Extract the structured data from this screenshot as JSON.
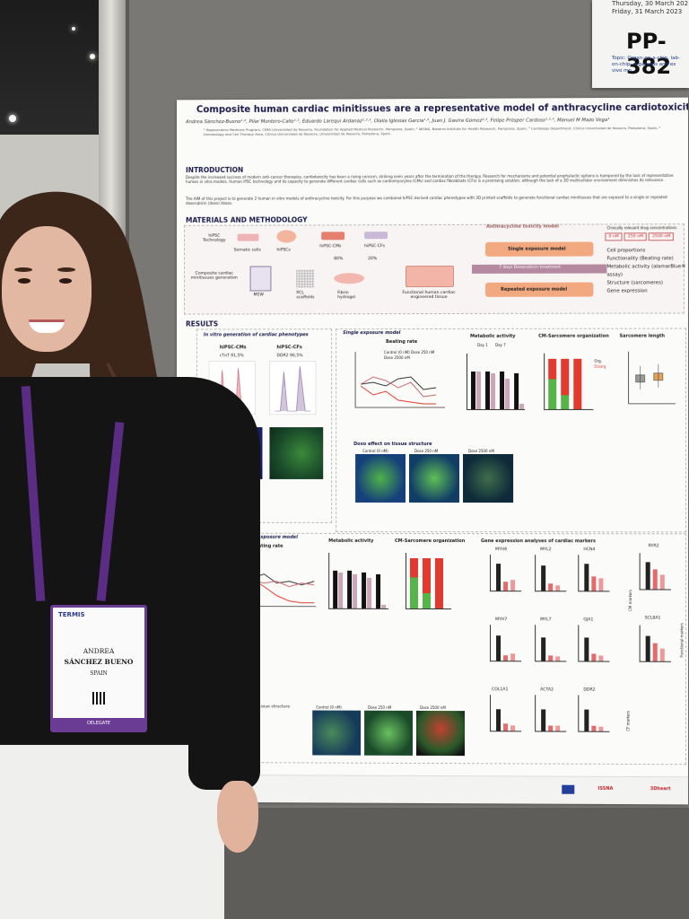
{
  "card": {
    "date_line1": "Thursday, 30 March 202",
    "date_line2": "Friday, 31 March 2023",
    "poster_id": "PP-382",
    "topic": "Topic: Organ-on-a-chip, lab-on-chip, organoids and ex vivo mo..."
  },
  "poster": {
    "title": "Composite human cardiac minitissues are a representative model of anthracycline cardiotoxicity",
    "authors": "Andrea Sánchez-Bueno¹·², Pilar Montero-Calle¹·², Eduardo Larequi Ardanáz¹·²·³, Olalla Iglesias García¹·², Juan J. Gavira Gómez²·³, Felipe Prósper Cardoso¹·²·³, Manuel M Mazo Vega¹",
    "affiliations": "¹ Regenerative Medicine Program, CIMA Universidad de Navarra, Foundation for Applied Medical Research, Pamplona, Spain; ² IdiSNA, Navarra Institute for Health Research, Pamplona, Spain; ³ Cardiology Department, Clínica Universidad de Navarra, Pamplona, Spain; ⁴ Hematology and Cell Therapy Area, Clínica Universidad de Navarra, Universidad de Navarra, Pamplona, Spain.",
    "intro_heading": "INTRODUCTION",
    "intro_text": "Despite the increased success of modern anti-cancer therapies, cardiotoxicity has been a rising concern, striking even years after the termination of the therapy. Research for mechanisms and potential prophylactic options is hampered by the lack of representative human in vitro models. Human iPSC technology and its capacity to generate different cardiac cells such as cardiomyocytes (CMs) and cardiac fibroblasts (CFs) is a promising solution, although the lack of a 3D multicellular environment diminishes its relevance.",
    "intro_aim": "The AIM of this project is to generate 2 human in vitro models of anthracycline toxicity. For this purpose we combined hiPSC-derived cardiac phenotypes with 3D printed scaffolds to generate functional cardiac minitissues that are exposed to a single or repeated doxorubicin (doxo) doses.",
    "methods_heading": "MATERIALS AND METHODOLOGY",
    "methods": {
      "hipsc_tech": "hiPSC Technology",
      "somatic": "Somatic cells",
      "hipscs": "hiPSCs",
      "hipsc_cms": "hiPSC-CMs",
      "hipsc_cfs": "hiPSC-CFs",
      "pct80": "80%",
      "pct20": "20%",
      "composite": "Composite cardiac minitissues generation",
      "mew": "MEW",
      "pcl": "PCL scaffolds",
      "fibrin": "Fibrin hydrogel",
      "functional": "Functional human cardiac engineered tissue",
      "toxicity_title": "Anthracycline toxicity model",
      "single_model": "Single exposure model",
      "doxo_treatment": "7 days Doxorubicin treatment",
      "repeated_model": "Repeated exposure model",
      "conc_title": "Clinically relevant drug concentrations",
      "conc": [
        "0 nM",
        "250 nM",
        "2500 nM"
      ],
      "readouts": [
        "Cell proportions",
        "Functionality (Beating rate)",
        "Metabolic activity (alamarBlue® assay)",
        "Structure (sarcomeres)",
        "Gene expression"
      ]
    },
    "results_heading": "RESULTS",
    "results": {
      "invitro_title": "In vitro generation of cardiac phenotypes",
      "cms_label": "hiPSC-CMs",
      "cfs_label": "hiPSC-CFs",
      "ctnt": "cTnT 91,5%",
      "ddr2": "DDR2 96,5%",
      "single_title": "Single exposure model",
      "beating": "Beating rate",
      "metabolic": "Metabolic activity",
      "sarcomere_org": "CM-Sarcomere organization",
      "sarcomere_len": "Sarcomere length",
      "legend_control": "Control (0 nM)",
      "legend_250": "Dose 250 nM",
      "legend_2500": "Dose 2500 nM",
      "day1": "Day 1",
      "day7": "Day 7",
      "org": "Org.",
      "disorg": "Disorg.",
      "doxo_effect": "Doxo effect on tissue structure",
      "micro_labels": [
        "Control (0 nM)",
        "Dose 250 nM",
        "Dose 2500 nM"
      ],
      "repeated_title": "Repeated exposure model",
      "gene_title": "Gene expression analyses of cardiac markers",
      "genes_row1": [
        "MYH6",
        "MYL2",
        "HCN4",
        "RYR2"
      ],
      "genes_row2": [
        "MYH7",
        "MYL7",
        "GJA1",
        "SCL8A1"
      ],
      "genes_row3": [
        "COL1A1",
        "ACTA2",
        "DDR2"
      ],
      "cm_markers": "CM markers",
      "functional_markers": "Functional markers",
      "cf_markers": "CF markers",
      "tissue_structure": "Tissue structure"
    },
    "funding_logos": [
      "ISSNA",
      "3Dheart"
    ]
  },
  "badge": {
    "logo": "TERMIS",
    "first_name": "ANDREA",
    "last_name": "SÁNCHEZ BUENO",
    "country": "SPAIN",
    "role": "DELEGATE"
  },
  "colors": {
    "poster_title": "#1b1b4d",
    "lanyard": "#5b2c83",
    "bar_red": "#e23a2e",
    "bar_green": "#55b548",
    "accent_orange": "#f2a97f",
    "accent_mauve": "#b58aa0"
  }
}
